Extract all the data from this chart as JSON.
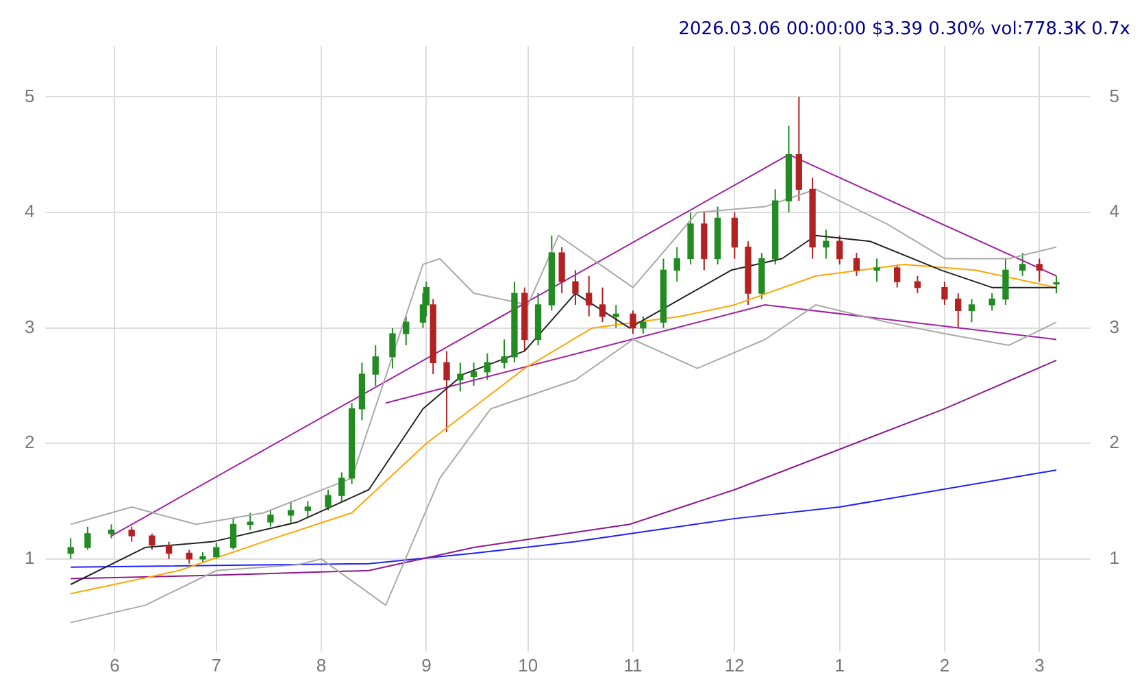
{
  "chart_data": {
    "type": "candlestick",
    "title": "2026.03.06 00:00:00 $3.39 0.30% vol:778.3K 0.7x",
    "xlim": [
      "2025-05-14",
      "2026-03-16"
    ],
    "xticks": [
      {
        "value": "2025-06",
        "label": "6"
      },
      {
        "value": "2025-07",
        "label": "7"
      },
      {
        "value": "2025-08",
        "label": "8"
      },
      {
        "value": "2025-09",
        "label": "9"
      },
      {
        "value": "2025-10",
        "label": "10"
      },
      {
        "value": "2025-11",
        "label": "11"
      },
      {
        "value": "2025-12",
        "label": "12"
      },
      {
        "value": "2026-01",
        "label": "1"
      },
      {
        "value": "2026-02",
        "label": "2"
      },
      {
        "value": "2026-03",
        "label": "3"
      }
    ],
    "ylim": [
      0.2,
      5.44
    ],
    "yticks": [
      1,
      2,
      3,
      4,
      5
    ],
    "y2lim": [
      0.2,
      5.44
    ],
    "y2ticks": [
      1,
      2,
      3,
      4,
      5
    ],
    "grid": true,
    "legend": false,
    "marker": "none",
    "series": [
      {
        "type": "line",
        "color": "#a9a9a9",
        "x": [
          "2025-05-19",
          "2025-06-06",
          "2025-06-25",
          "2025-07-15",
          "2025-08-10",
          "2025-08-31",
          "2025-09-05",
          "2025-09-15",
          "2025-10-01",
          "2025-10-10",
          "2025-11-01",
          "2025-11-20",
          "2025-12-10",
          "2025-12-25",
          "2026-01-15",
          "2026-02-01",
          "2026-02-20",
          "2026-03-06"
        ],
        "values": [
          1.3,
          1.45,
          1.3,
          1.4,
          1.7,
          3.55,
          3.6,
          3.3,
          3.2,
          3.8,
          3.35,
          4.0,
          4.05,
          4.2,
          3.9,
          3.6,
          3.6,
          3.7
        ]
      },
      {
        "type": "line",
        "color": "#a9a9a9",
        "x": [
          "2025-05-19",
          "2025-06-10",
          "2025-07-01",
          "2025-07-25",
          "2025-08-01",
          "2025-08-20",
          "2025-09-05",
          "2025-09-20",
          "2025-10-15",
          "2025-11-01",
          "2025-11-20",
          "2025-12-10",
          "2025-12-25",
          "2026-01-15",
          "2026-02-01",
          "2026-02-20",
          "2026-03-06"
        ],
        "values": [
          0.45,
          0.6,
          0.9,
          0.95,
          1.0,
          0.6,
          1.7,
          2.3,
          2.55,
          2.9,
          2.65,
          2.9,
          3.2,
          3.05,
          2.95,
          2.85,
          3.05
        ]
      },
      {
        "type": "line",
        "color": "#222222",
        "x": [
          "2025-05-19",
          "2025-06-10",
          "2025-06-30",
          "2025-07-25",
          "2025-08-15",
          "2025-08-31",
          "2025-09-12",
          "2025-09-30",
          "2025-10-15",
          "2025-10-31",
          "2025-11-12",
          "2025-11-30",
          "2025-12-15",
          "2025-12-25",
          "2026-01-10",
          "2026-01-31",
          "2026-02-15",
          "2026-03-06"
        ],
        "values": [
          0.78,
          1.1,
          1.15,
          1.32,
          1.6,
          2.3,
          2.6,
          2.8,
          3.3,
          3.0,
          3.2,
          3.5,
          3.6,
          3.8,
          3.75,
          3.5,
          3.35,
          3.35
        ]
      },
      {
        "type": "line",
        "color": "#ffa500",
        "x": [
          "2025-05-19",
          "2025-06-20",
          "2025-07-15",
          "2025-08-10",
          "2025-09-01",
          "2025-09-30",
          "2025-10-20",
          "2025-11-15",
          "2025-12-01",
          "2025-12-25",
          "2026-01-20",
          "2026-02-10",
          "2026-03-06"
        ],
        "values": [
          0.7,
          0.9,
          1.15,
          1.4,
          2.0,
          2.65,
          3.0,
          3.1,
          3.2,
          3.45,
          3.55,
          3.5,
          3.35
        ]
      },
      {
        "type": "line",
        "color": "#8b1a8b",
        "x": [
          "2025-05-19",
          "2025-07-01",
          "2025-08-15",
          "2025-09-15",
          "2025-10-31",
          "2025-12-01",
          "2026-01-01",
          "2026-02-01",
          "2026-03-06"
        ],
        "values": [
          0.83,
          0.86,
          0.9,
          1.1,
          1.3,
          1.6,
          1.95,
          2.3,
          2.72
        ]
      },
      {
        "type": "line",
        "color": "#1f1fff",
        "x": [
          "2025-05-19",
          "2025-08-15",
          "2025-09-15",
          "2025-10-15",
          "2025-12-01",
          "2026-01-01",
          "2026-03-06"
        ],
        "values": [
          0.93,
          0.96,
          1.05,
          1.15,
          1.35,
          1.45,
          1.77
        ]
      },
      {
        "type": "line",
        "color": "#a020a0",
        "x": [
          "2025-05-31",
          "2025-12-17",
          "2026-03-06"
        ],
        "values": [
          1.2,
          4.5,
          3.45
        ]
      },
      {
        "type": "line",
        "color": "#a020a0",
        "x": [
          "2025-08-20",
          "2025-12-10",
          "2026-03-06"
        ],
        "values": [
          2.35,
          3.2,
          2.9
        ]
      },
      {
        "x": [
          "2025-05-19",
          "2025-05-24",
          "2025-05-31",
          "2025-06-06",
          "2025-06-12",
          "2025-06-17",
          "2025-06-23",
          "2025-06-27",
          "2025-07-01",
          "2025-07-06",
          "2025-07-11",
          "2025-07-17",
          "2025-07-23",
          "2025-07-28",
          "2025-08-03",
          "2025-08-07",
          "2025-08-10",
          "2025-08-13",
          "2025-08-17",
          "2025-08-22",
          "2025-08-26",
          "2025-08-31",
          "2025-09-01",
          "2025-09-03",
          "2025-09-07",
          "2025-09-11",
          "2025-09-15",
          "2025-09-19",
          "2025-09-24",
          "2025-09-27",
          "2025-09-30",
          "2025-10-04",
          "2025-10-08",
          "2025-10-11",
          "2025-10-15",
          "2025-10-19",
          "2025-10-23",
          "2025-10-27",
          "2025-11-01",
          "2025-11-04",
          "2025-11-10",
          "2025-11-14",
          "2025-11-18",
          "2025-11-22",
          "2025-11-26",
          "2025-12-01",
          "2025-12-05",
          "2025-12-09",
          "2025-12-13",
          "2025-12-17",
          "2025-12-20",
          "2025-12-24",
          "2025-12-28",
          "2026-01-01",
          "2026-01-06",
          "2026-01-12",
          "2026-01-18",
          "2026-01-24",
          "2026-02-01",
          "2026-02-05",
          "2026-02-09",
          "2026-02-15",
          "2026-02-19",
          "2026-02-24",
          "2026-03-01",
          "2026-03-06"
        ],
        "ohlc": [
          [
            1.05,
            1.18,
            1.0,
            1.1
          ],
          [
            1.1,
            1.28,
            1.08,
            1.22
          ],
          [
            1.22,
            1.3,
            1.18,
            1.25
          ],
          [
            1.25,
            1.28,
            1.15,
            1.2
          ],
          [
            1.2,
            1.22,
            1.08,
            1.12
          ],
          [
            1.12,
            1.15,
            1.0,
            1.05
          ],
          [
            1.05,
            1.08,
            0.96,
            1.0
          ],
          [
            1.0,
            1.06,
            0.97,
            1.02
          ],
          [
            1.02,
            1.14,
            1.0,
            1.1
          ],
          [
            1.1,
            1.35,
            1.08,
            1.3
          ],
          [
            1.3,
            1.4,
            1.25,
            1.32
          ],
          [
            1.32,
            1.42,
            1.28,
            1.38
          ],
          [
            1.38,
            1.5,
            1.3,
            1.42
          ],
          [
            1.42,
            1.5,
            1.36,
            1.45
          ],
          [
            1.45,
            1.6,
            1.42,
            1.55
          ],
          [
            1.55,
            1.75,
            1.5,
            1.7
          ],
          [
            1.7,
            2.35,
            1.65,
            2.3
          ],
          [
            2.3,
            2.7,
            2.2,
            2.6
          ],
          [
            2.6,
            2.85,
            2.5,
            2.75
          ],
          [
            2.75,
            3.0,
            2.65,
            2.95
          ],
          [
            2.95,
            3.1,
            2.85,
            3.05
          ],
          [
            3.05,
            3.3,
            3.0,
            3.2
          ],
          [
            3.2,
            3.4,
            3.1,
            3.35
          ],
          [
            3.2,
            3.25,
            2.6,
            2.7
          ],
          [
            2.7,
            2.8,
            2.1,
            2.55
          ],
          [
            2.55,
            2.7,
            2.45,
            2.6
          ],
          [
            2.58,
            2.7,
            2.5,
            2.62
          ],
          [
            2.62,
            2.78,
            2.55,
            2.7
          ],
          [
            2.7,
            2.9,
            2.65,
            2.75
          ],
          [
            2.75,
            3.4,
            2.7,
            3.3
          ],
          [
            3.3,
            3.35,
            2.8,
            2.9
          ],
          [
            2.9,
            3.3,
            2.85,
            3.2
          ],
          [
            3.2,
            3.8,
            3.15,
            3.65
          ],
          [
            3.65,
            3.7,
            3.3,
            3.4
          ],
          [
            3.4,
            3.5,
            3.2,
            3.3
          ],
          [
            3.3,
            3.45,
            3.1,
            3.2
          ],
          [
            3.2,
            3.35,
            3.05,
            3.1
          ],
          [
            3.1,
            3.2,
            3.0,
            3.12
          ],
          [
            3.12,
            3.15,
            2.95,
            3.0
          ],
          [
            3.0,
            3.1,
            2.95,
            3.05
          ],
          [
            3.05,
            3.6,
            3.0,
            3.5
          ],
          [
            3.5,
            3.7,
            3.4,
            3.6
          ],
          [
            3.6,
            4.0,
            3.55,
            3.9
          ],
          [
            3.9,
            4.0,
            3.5,
            3.6
          ],
          [
            3.6,
            4.05,
            3.55,
            3.95
          ],
          [
            3.95,
            4.0,
            3.6,
            3.7
          ],
          [
            3.7,
            3.75,
            3.2,
            3.3
          ],
          [
            3.3,
            3.65,
            3.25,
            3.6
          ],
          [
            3.6,
            4.2,
            3.55,
            4.1
          ],
          [
            4.1,
            4.75,
            4.0,
            4.5
          ],
          [
            4.5,
            5.0,
            4.1,
            4.2
          ],
          [
            4.2,
            4.3,
            3.6,
            3.7
          ],
          [
            3.7,
            3.85,
            3.6,
            3.75
          ],
          [
            3.75,
            3.8,
            3.55,
            3.6
          ],
          [
            3.6,
            3.65,
            3.45,
            3.5
          ],
          [
            3.5,
            3.6,
            3.4,
            3.52
          ],
          [
            3.52,
            3.55,
            3.35,
            3.4
          ],
          [
            3.4,
            3.45,
            3.3,
            3.35
          ],
          [
            3.35,
            3.4,
            3.2,
            3.25
          ],
          [
            3.25,
            3.3,
            3.0,
            3.15
          ],
          [
            3.15,
            3.25,
            3.05,
            3.2
          ],
          [
            3.2,
            3.3,
            3.15,
            3.25
          ],
          [
            3.25,
            3.6,
            3.2,
            3.5
          ],
          [
            3.5,
            3.65,
            3.45,
            3.55
          ],
          [
            3.55,
            3.6,
            3.4,
            3.5
          ],
          [
            3.38,
            3.45,
            3.3,
            3.39
          ]
        ],
        "colors": [
          "#228b22",
          "#228b22",
          "#228b22",
          "#b22222",
          "#b22222",
          "#b22222",
          "#b22222",
          "#228b22",
          "#228b22",
          "#228b22",
          "#228b22",
          "#228b22",
          "#228b22",
          "#228b22",
          "#228b22",
          "#228b22",
          "#228b22",
          "#228b22",
          "#228b22",
          "#228b22",
          "#228b22",
          "#228b22",
          "#228b22",
          "#b22222",
          "#b22222",
          "#228b22",
          "#228b22",
          "#228b22",
          "#228b22",
          "#228b22",
          "#b22222",
          "#228b22",
          "#228b22",
          "#b22222",
          "#b22222",
          "#b22222",
          "#b22222",
          "#228b22",
          "#b22222",
          "#228b22",
          "#228b22",
          "#228b22",
          "#228b22",
          "#b22222",
          "#228b22",
          "#b22222",
          "#b22222",
          "#228b22",
          "#228b22",
          "#228b22",
          "#b22222",
          "#b22222",
          "#228b22",
          "#b22222",
          "#b22222",
          "#228b22",
          "#b22222",
          "#b22222",
          "#b22222",
          "#b22222",
          "#228b22",
          "#228b22",
          "#228b22",
          "#228b22",
          "#b22222",
          "#228b22"
        ]
      }
    ]
  }
}
